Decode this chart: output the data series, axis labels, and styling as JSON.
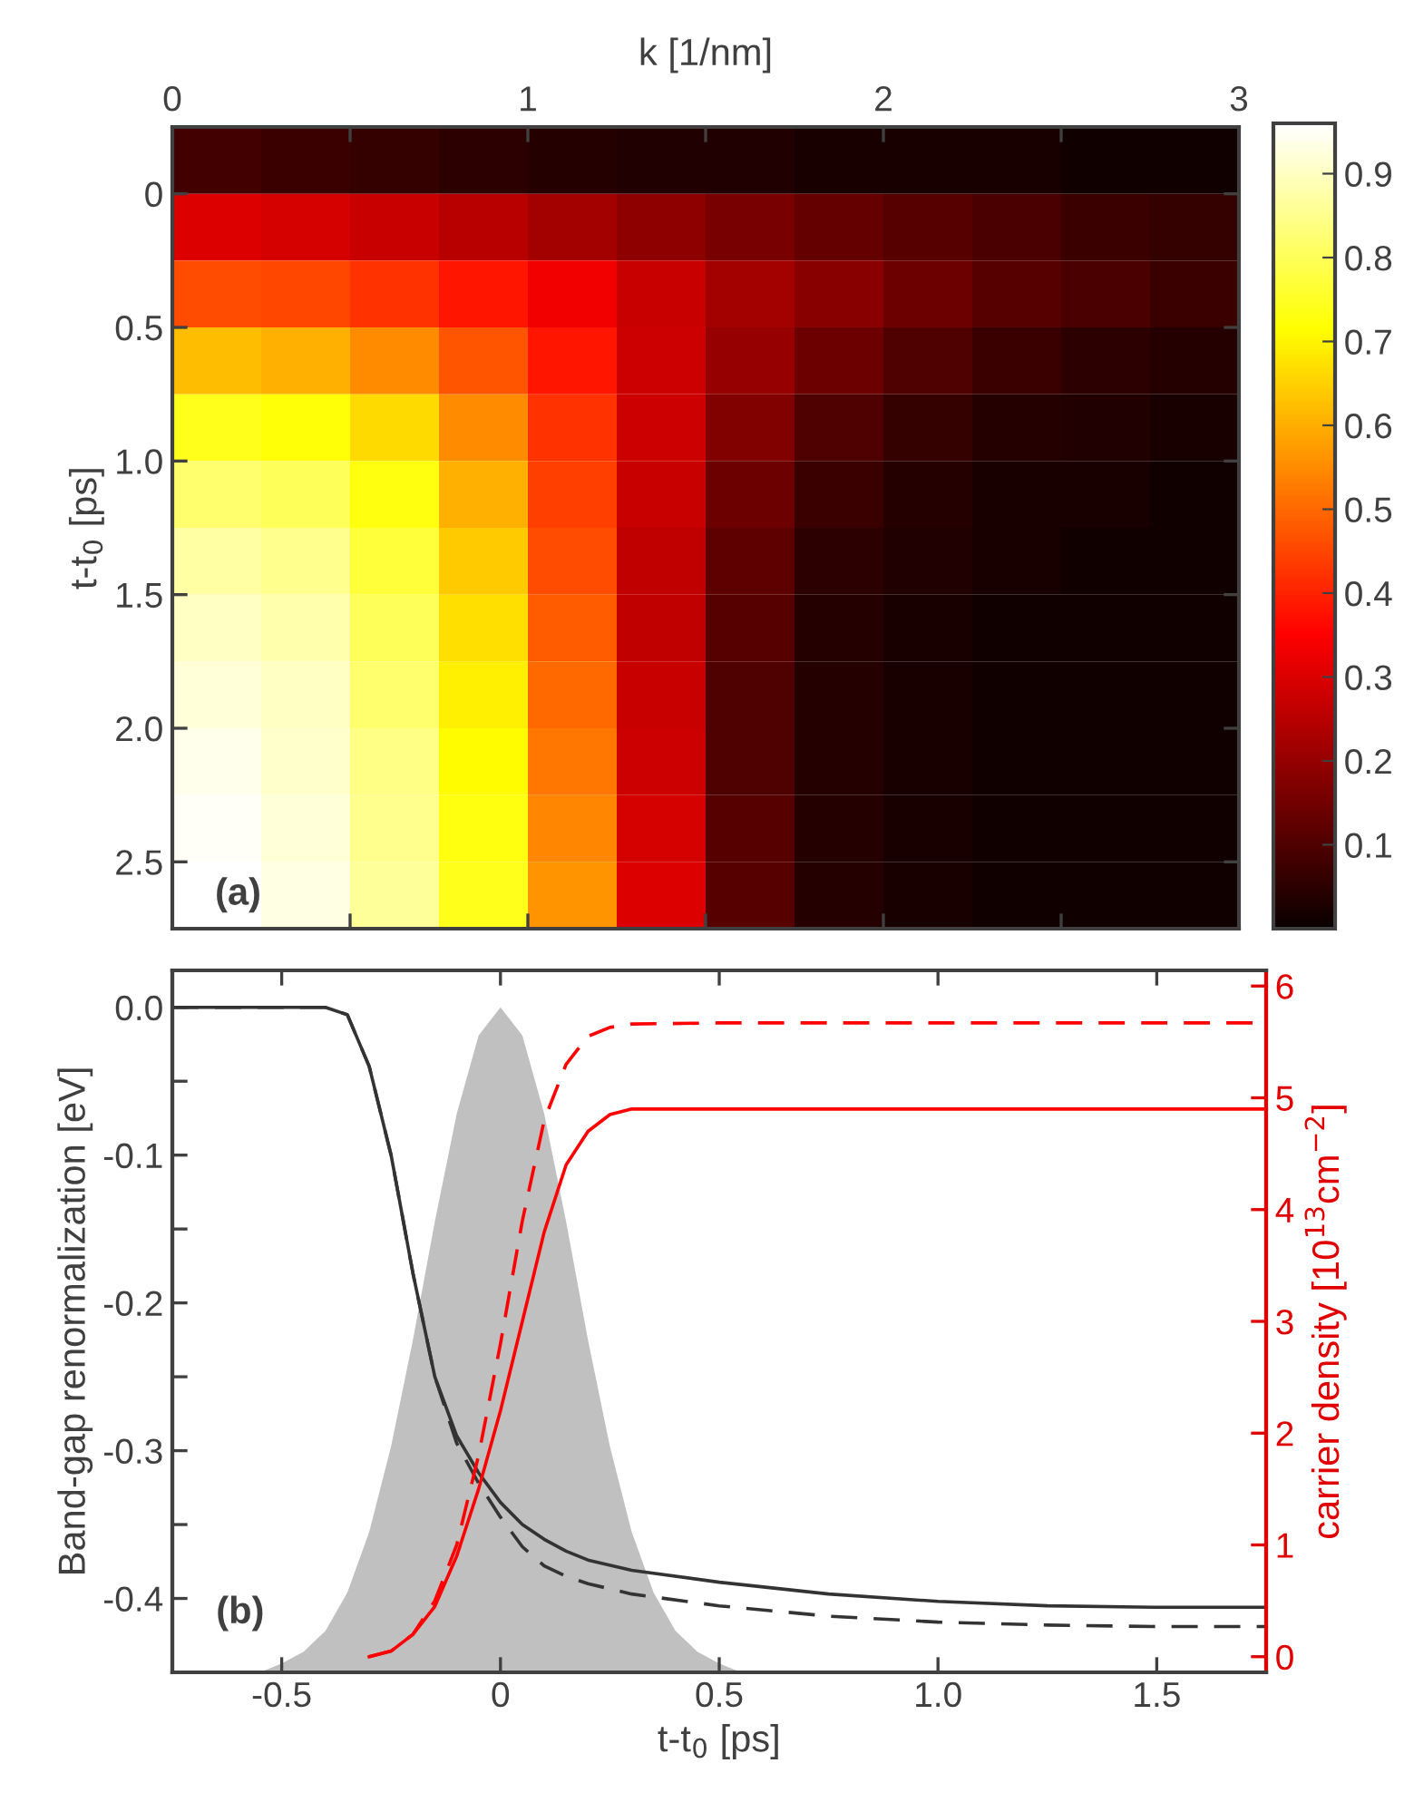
{
  "chart_data": [
    {
      "type": "heatmap",
      "xlabel": "k [1/nm]",
      "ylabel": "t-t$_{0}$ [ps]",
      "annotations": [
        "(a)"
      ],
      "x": [
        0.125,
        0.375,
        0.625,
        0.875,
        1.125,
        1.375,
        1.625,
        1.875,
        2.125,
        2.375,
        2.625,
        2.875
      ],
      "y": [
        -0.125,
        0.125,
        0.375,
        0.625,
        0.875,
        1.125,
        1.375,
        1.625,
        1.875,
        2.125,
        2.375,
        2.625
      ],
      "cells": [
        [
          0.08,
          0.07,
          0.06,
          0.05,
          0.04,
          0.03,
          0.03,
          0.02,
          0.02,
          0.02,
          0.01,
          0.01
        ],
        [
          0.3,
          0.29,
          0.27,
          0.25,
          0.22,
          0.19,
          0.16,
          0.13,
          0.11,
          0.09,
          0.07,
          0.06
        ],
        [
          0.46,
          0.45,
          0.42,
          0.38,
          0.33,
          0.27,
          0.22,
          0.18,
          0.14,
          0.11,
          0.09,
          0.07
        ],
        [
          0.62,
          0.6,
          0.55,
          0.47,
          0.38,
          0.28,
          0.2,
          0.14,
          0.1,
          0.07,
          0.05,
          0.04
        ],
        [
          0.74,
          0.72,
          0.66,
          0.55,
          0.42,
          0.28,
          0.17,
          0.1,
          0.06,
          0.04,
          0.03,
          0.02
        ],
        [
          0.82,
          0.8,
          0.73,
          0.6,
          0.44,
          0.27,
          0.14,
          0.07,
          0.04,
          0.02,
          0.02,
          0.01
        ],
        [
          0.87,
          0.85,
          0.77,
          0.64,
          0.46,
          0.26,
          0.12,
          0.05,
          0.03,
          0.02,
          0.01,
          0.01
        ],
        [
          0.9,
          0.88,
          0.8,
          0.67,
          0.48,
          0.26,
          0.11,
          0.04,
          0.02,
          0.01,
          0.01,
          0.01
        ],
        [
          0.92,
          0.9,
          0.82,
          0.69,
          0.5,
          0.27,
          0.1,
          0.04,
          0.02,
          0.01,
          0.01,
          0.01
        ],
        [
          0.94,
          0.91,
          0.84,
          0.71,
          0.52,
          0.28,
          0.1,
          0.04,
          0.02,
          0.01,
          0.01,
          0.01
        ],
        [
          0.95,
          0.92,
          0.85,
          0.73,
          0.54,
          0.29,
          0.11,
          0.04,
          0.02,
          0.01,
          0.01,
          0.01
        ],
        [
          0.96,
          0.93,
          0.86,
          0.74,
          0.56,
          0.3,
          0.11,
          0.04,
          0.02,
          0.01,
          0.01,
          0.01
        ]
      ],
      "xlim": [
        0,
        3
      ],
      "xticks": [
        0,
        {
          "value": 0.5,
          "label": null
        },
        1,
        {
          "value": 1.5,
          "label": null
        },
        2,
        {
          "value": 2.5,
          "label": null
        },
        3
      ],
      "ylim": [
        2.75,
        -0.25
      ],
      "yticks": [
        0,
        0.5,
        {
          "value": 1.0,
          "label": "1.0"
        },
        1.5,
        {
          "value": 2.0,
          "label": "2.0"
        },
        2.5
      ],
      "clim": [
        0,
        0.96
      ],
      "cticks": [
        0.1,
        0.2,
        0.3,
        0.4,
        0.5,
        0.6,
        0.7,
        0.8,
        0.9
      ]
    },
    {
      "type": "line",
      "xlabel": "t-t$_{0}$ [ps]",
      "ylabel": "Band-gap renormalization [eV]",
      "y2label": "carrier density [10$^{13}$cm$^{−2}$]",
      "annotations": [
        "(b)"
      ],
      "xlim": [
        -0.75,
        1.75
      ],
      "xticks": [
        -0.5,
        {
          "value": 0,
          "label": "0"
        },
        0.5,
        {
          "value": 1.0,
          "label": "1.0"
        },
        1.5
      ],
      "ylim": [
        -0.45,
        0.025
      ],
      "yticks": [
        {
          "value": -0.45,
          "label": null
        },
        -0.4,
        {
          "value": -0.35,
          "label": null
        },
        -0.3,
        {
          "value": -0.25,
          "label": null
        },
        -0.2,
        {
          "value": -0.15,
          "label": null
        },
        -0.1,
        {
          "value": -0.05,
          "label": null
        },
        {
          "value": 0,
          "label": "0.0"
        }
      ],
      "y2lim": [
        -0.14,
        6.14
      ],
      "y2ticks": [
        0,
        1,
        2,
        3,
        4,
        5,
        6
      ],
      "series": [
        {
          "type": "area",
          "color": "#c0c0c0",
          "x": [
            -0.55,
            -0.5,
            -0.45,
            -0.4,
            -0.35,
            -0.3,
            -0.25,
            -0.2,
            -0.15,
            -0.1,
            -0.05,
            0,
            0.05,
            0.1,
            0.15,
            0.2,
            0.25,
            0.3,
            0.35,
            0.4,
            0.45,
            0.5,
            0.55
          ],
          "values": [
            -0.45,
            -0.444,
            -0.436,
            -0.422,
            -0.396,
            -0.355,
            -0.297,
            -0.225,
            -0.145,
            -0.072,
            -0.019,
            0.0,
            -0.019,
            -0.072,
            -0.145,
            -0.225,
            -0.297,
            -0.355,
            -0.396,
            -0.422,
            -0.436,
            -0.444,
            -0.45
          ]
        },
        {
          "type": "line",
          "color": "#333333",
          "line_style": "solid",
          "x": [
            -0.75,
            -0.4,
            -0.35,
            -0.3,
            -0.25,
            -0.2,
            -0.15,
            -0.1,
            -0.05,
            0,
            0.05,
            0.1,
            0.15,
            0.2,
            0.3,
            0.5,
            0.75,
            1.0,
            1.25,
            1.5,
            1.75
          ],
          "values": [
            0,
            0,
            -0.005,
            -0.04,
            -0.1,
            -0.18,
            -0.25,
            -0.29,
            -0.315,
            -0.335,
            -0.35,
            -0.36,
            -0.368,
            -0.374,
            -0.381,
            -0.389,
            -0.397,
            -0.402,
            -0.405,
            -0.406,
            -0.406
          ]
        },
        {
          "type": "line",
          "color": "#333333",
          "line_style": "dashed",
          "x": [
            -0.75,
            -0.4,
            -0.35,
            -0.3,
            -0.25,
            -0.2,
            -0.15,
            -0.1,
            -0.05,
            0,
            0.05,
            0.1,
            0.15,
            0.2,
            0.3,
            0.5,
            0.75,
            1.0,
            1.25,
            1.5,
            1.75
          ],
          "values": [
            0,
            0,
            -0.005,
            -0.04,
            -0.1,
            -0.18,
            -0.25,
            -0.295,
            -0.322,
            -0.345,
            -0.365,
            -0.378,
            -0.385,
            -0.39,
            -0.397,
            -0.405,
            -0.412,
            -0.416,
            -0.418,
            -0.419,
            -0.419
          ]
        },
        {
          "type": "line",
          "axis": "y2",
          "color": "#ff0000",
          "line_style": "solid",
          "x": [
            -0.3,
            -0.25,
            -0.2,
            -0.15,
            -0.1,
            -0.05,
            0,
            0.05,
            0.1,
            0.15,
            0.2,
            0.25,
            0.3,
            0.5,
            1.75
          ],
          "values": [
            0,
            0.05,
            0.2,
            0.45,
            0.9,
            1.5,
            2.2,
            3.0,
            3.8,
            4.4,
            4.7,
            4.85,
            4.9,
            4.9,
            4.9
          ]
        },
        {
          "type": "line",
          "axis": "y2",
          "color": "#ff0000",
          "line_style": "dashed",
          "x": [
            -0.3,
            -0.25,
            -0.2,
            -0.15,
            -0.1,
            -0.05,
            0,
            0.05,
            0.1,
            0.15,
            0.2,
            0.25,
            0.3,
            0.5,
            1.75
          ],
          "values": [
            0,
            0.05,
            0.2,
            0.5,
            1.0,
            1.8,
            2.8,
            3.9,
            4.8,
            5.3,
            5.55,
            5.63,
            5.66,
            5.67,
            5.67
          ]
        }
      ]
    }
  ]
}
